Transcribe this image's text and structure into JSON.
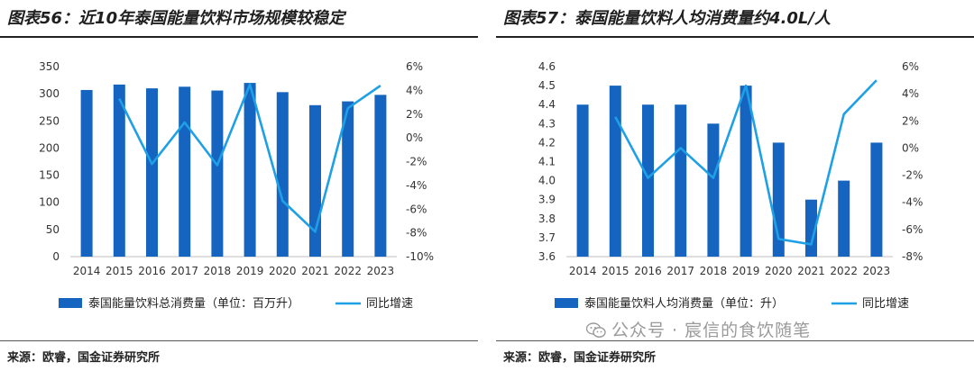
{
  "panels": [
    {
      "title": "图表56：近10年泰国能量饮料市场规模较稳定",
      "source": "来源：欧睿，国金证券研究所",
      "chart_data": {
        "type": "bar",
        "categories": [
          "2014",
          "2015",
          "2016",
          "2017",
          "2018",
          "2019",
          "2020",
          "2021",
          "2022",
          "2023"
        ],
        "series": [
          {
            "name": "泰国能量饮料总消费量（单位：百万升）",
            "type": "bar",
            "axis": "left",
            "color": "#1565c0",
            "values": [
              307,
              317,
              310,
              313,
              306,
              320,
              303,
              279,
              286,
              298
            ]
          },
          {
            "name": "同比增速",
            "type": "line",
            "axis": "right",
            "color": "#1ea0e6",
            "values": [
              null,
              3.3,
              -2.2,
              1.3,
              -2.3,
              4.5,
              -5.3,
              -7.9,
              2.5,
              4.4
            ]
          }
        ],
        "y_left": {
          "min": 0,
          "max": 350,
          "step": 50,
          "ticks": [
            "0",
            "50",
            "100",
            "150",
            "200",
            "250",
            "300",
            "350"
          ]
        },
        "y_right": {
          "min": -10,
          "max": 6,
          "step": 2,
          "ticks": [
            "-10%",
            "-8%",
            "-6%",
            "-4%",
            "-2%",
            "0%",
            "2%",
            "4%",
            "6%"
          ]
        },
        "grid": false,
        "legend": "bottom"
      }
    },
    {
      "title": "图表57：泰国能量饮料人均消费量约4.0L/人",
      "source": "来源：欧睿，国金证券研究所",
      "chart_data": {
        "type": "bar",
        "categories": [
          "2014",
          "2015",
          "2016",
          "2017",
          "2018",
          "2019",
          "2020",
          "2021",
          "2022",
          "2023"
        ],
        "series": [
          {
            "name": "泰国能量饮料人均消费量（单位：升）",
            "type": "bar",
            "axis": "left",
            "color": "#1565c0",
            "values": [
              4.4,
              4.5,
              4.4,
              4.4,
              4.3,
              4.5,
              4.2,
              3.9,
              4.0,
              4.2
            ]
          },
          {
            "name": "同比增速",
            "type": "line",
            "axis": "right",
            "color": "#1ea0e6",
            "values": [
              null,
              2.3,
              -2.2,
              0.0,
              -2.2,
              4.6,
              -6.7,
              -7.1,
              2.5,
              5.0
            ]
          }
        ],
        "y_left": {
          "min": 3.6,
          "max": 4.6,
          "step": 0.1,
          "ticks": [
            "3.6",
            "3.7",
            "3.8",
            "3.9",
            "4.0",
            "4.1",
            "4.2",
            "4.3",
            "4.4",
            "4.5",
            "4.6"
          ]
        },
        "y_right": {
          "min": -8,
          "max": 6,
          "step": 2,
          "ticks": [
            "-8%",
            "-6%",
            "-4%",
            "-2%",
            "0%",
            "2%",
            "4%",
            "6%"
          ]
        },
        "grid": false,
        "legend": "bottom"
      }
    }
  ],
  "watermark": {
    "text": "公众号 · 宸信的食饮随笔",
    "icon": "wechat-icon"
  }
}
